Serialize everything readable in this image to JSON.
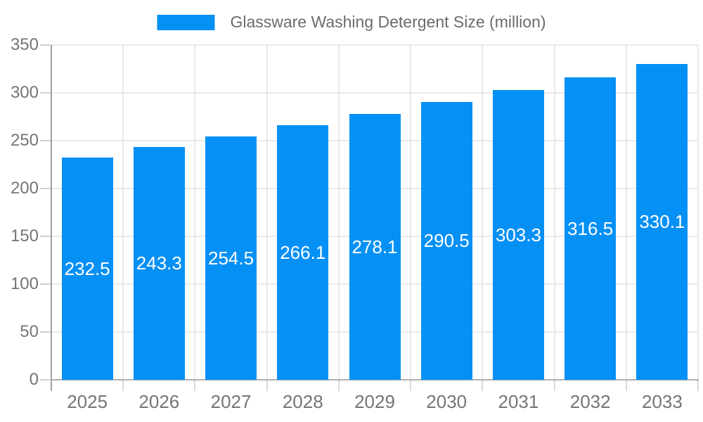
{
  "legend": {
    "series_label": "Glassware Washing Detergent Size (million)"
  },
  "chart_data": {
    "type": "bar",
    "title": "Glassware Washing Detergent Size (million)",
    "categories": [
      "2025",
      "2026",
      "2027",
      "2028",
      "2029",
      "2030",
      "2031",
      "2032",
      "2033"
    ],
    "values": [
      232.5,
      243.3,
      254.5,
      266.1,
      278.1,
      290.5,
      303.3,
      316.5,
      330.1
    ],
    "yticks": [
      0,
      50,
      100,
      150,
      200,
      250,
      300,
      350
    ],
    "ylim": [
      0,
      350
    ],
    "xlabel": "",
    "ylabel": "",
    "grid": true,
    "legend_position": "top-center",
    "bar_color": "#0590f5",
    "bar_label_color": "#ffffff",
    "axis_text_color": "#757575",
    "title_text_color": "#6b6b6b",
    "grid_color": "#e9e9e9",
    "y_axis_line_color": "#9e9e9e",
    "x_axis_line_color": "#b0b0b0"
  }
}
